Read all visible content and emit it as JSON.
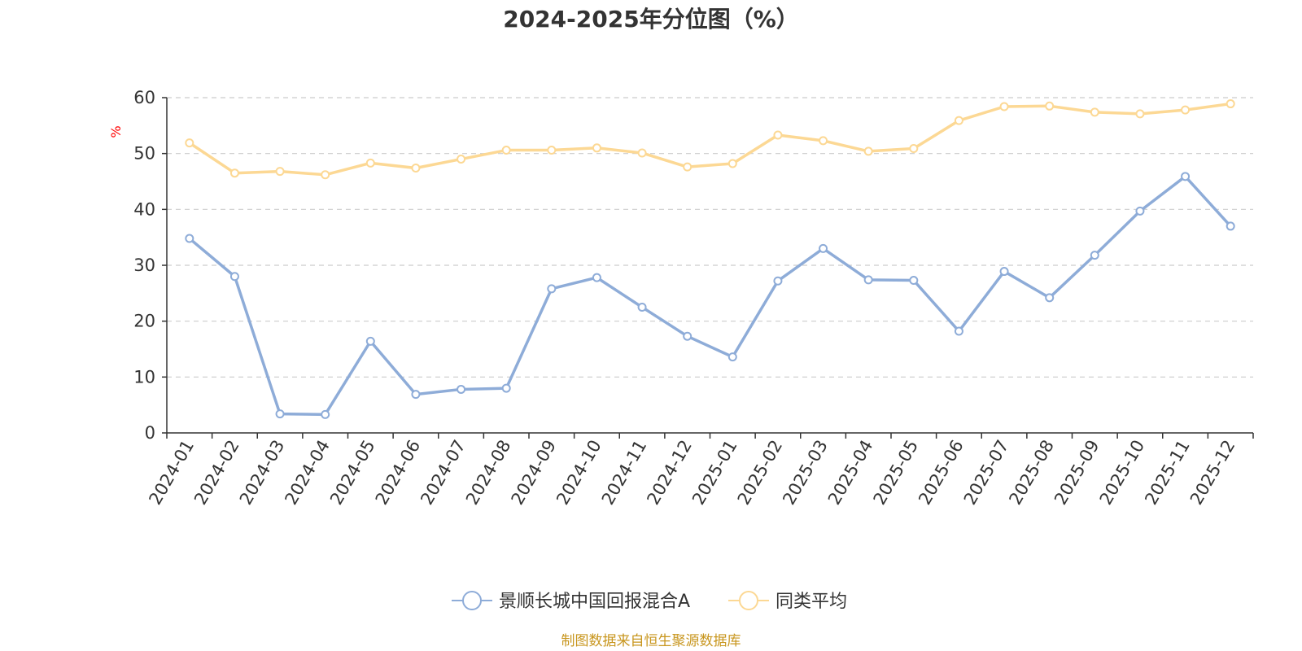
{
  "colors": {
    "series1": "#8eacd8",
    "series2": "#fcd894",
    "ylabel": "#ff0000",
    "source": "#c8961e",
    "grid": "#cccccc",
    "axis": "#333333"
  },
  "chart_data": {
    "type": "line",
    "title": "2024-2025年分位图（%）",
    "xlabel": "",
    "ylabel": "%",
    "ylim": [
      0,
      60
    ],
    "yticks": [
      0,
      10,
      20,
      30,
      40,
      50,
      60
    ],
    "grid": true,
    "legend_position": "bottom-center",
    "categories": [
      "2024-01",
      "2024-02",
      "2024-03",
      "2024-04",
      "2024-05",
      "2024-06",
      "2024-07",
      "2024-08",
      "2024-09",
      "2024-10",
      "2024-11",
      "2024-12",
      "2025-01",
      "2025-02",
      "2025-03",
      "2025-04",
      "2025-05",
      "2025-06",
      "2025-07",
      "2025-08",
      "2025-09",
      "2025-10",
      "2025-11",
      "2025-12"
    ],
    "series": [
      {
        "name": "景顺长城中国回报混合A",
        "values": [
          34.8,
          28.0,
          3.4,
          3.3,
          16.4,
          6.9,
          7.8,
          8.0,
          25.8,
          27.8,
          22.5,
          17.3,
          13.6,
          27.2,
          33.0,
          27.4,
          27.3,
          18.2,
          28.9,
          24.2,
          31.8,
          39.7,
          45.9,
          37.0
        ]
      },
      {
        "name": "同类平均",
        "values": [
          51.9,
          46.5,
          46.8,
          46.2,
          48.3,
          47.4,
          49.0,
          50.6,
          50.6,
          51.0,
          50.1,
          47.6,
          48.2,
          53.3,
          52.3,
          50.4,
          50.9,
          55.9,
          58.4,
          58.5,
          57.4,
          57.1,
          57.8,
          58.9
        ]
      }
    ]
  },
  "source_text": "制图数据来自恒生聚源数据库"
}
